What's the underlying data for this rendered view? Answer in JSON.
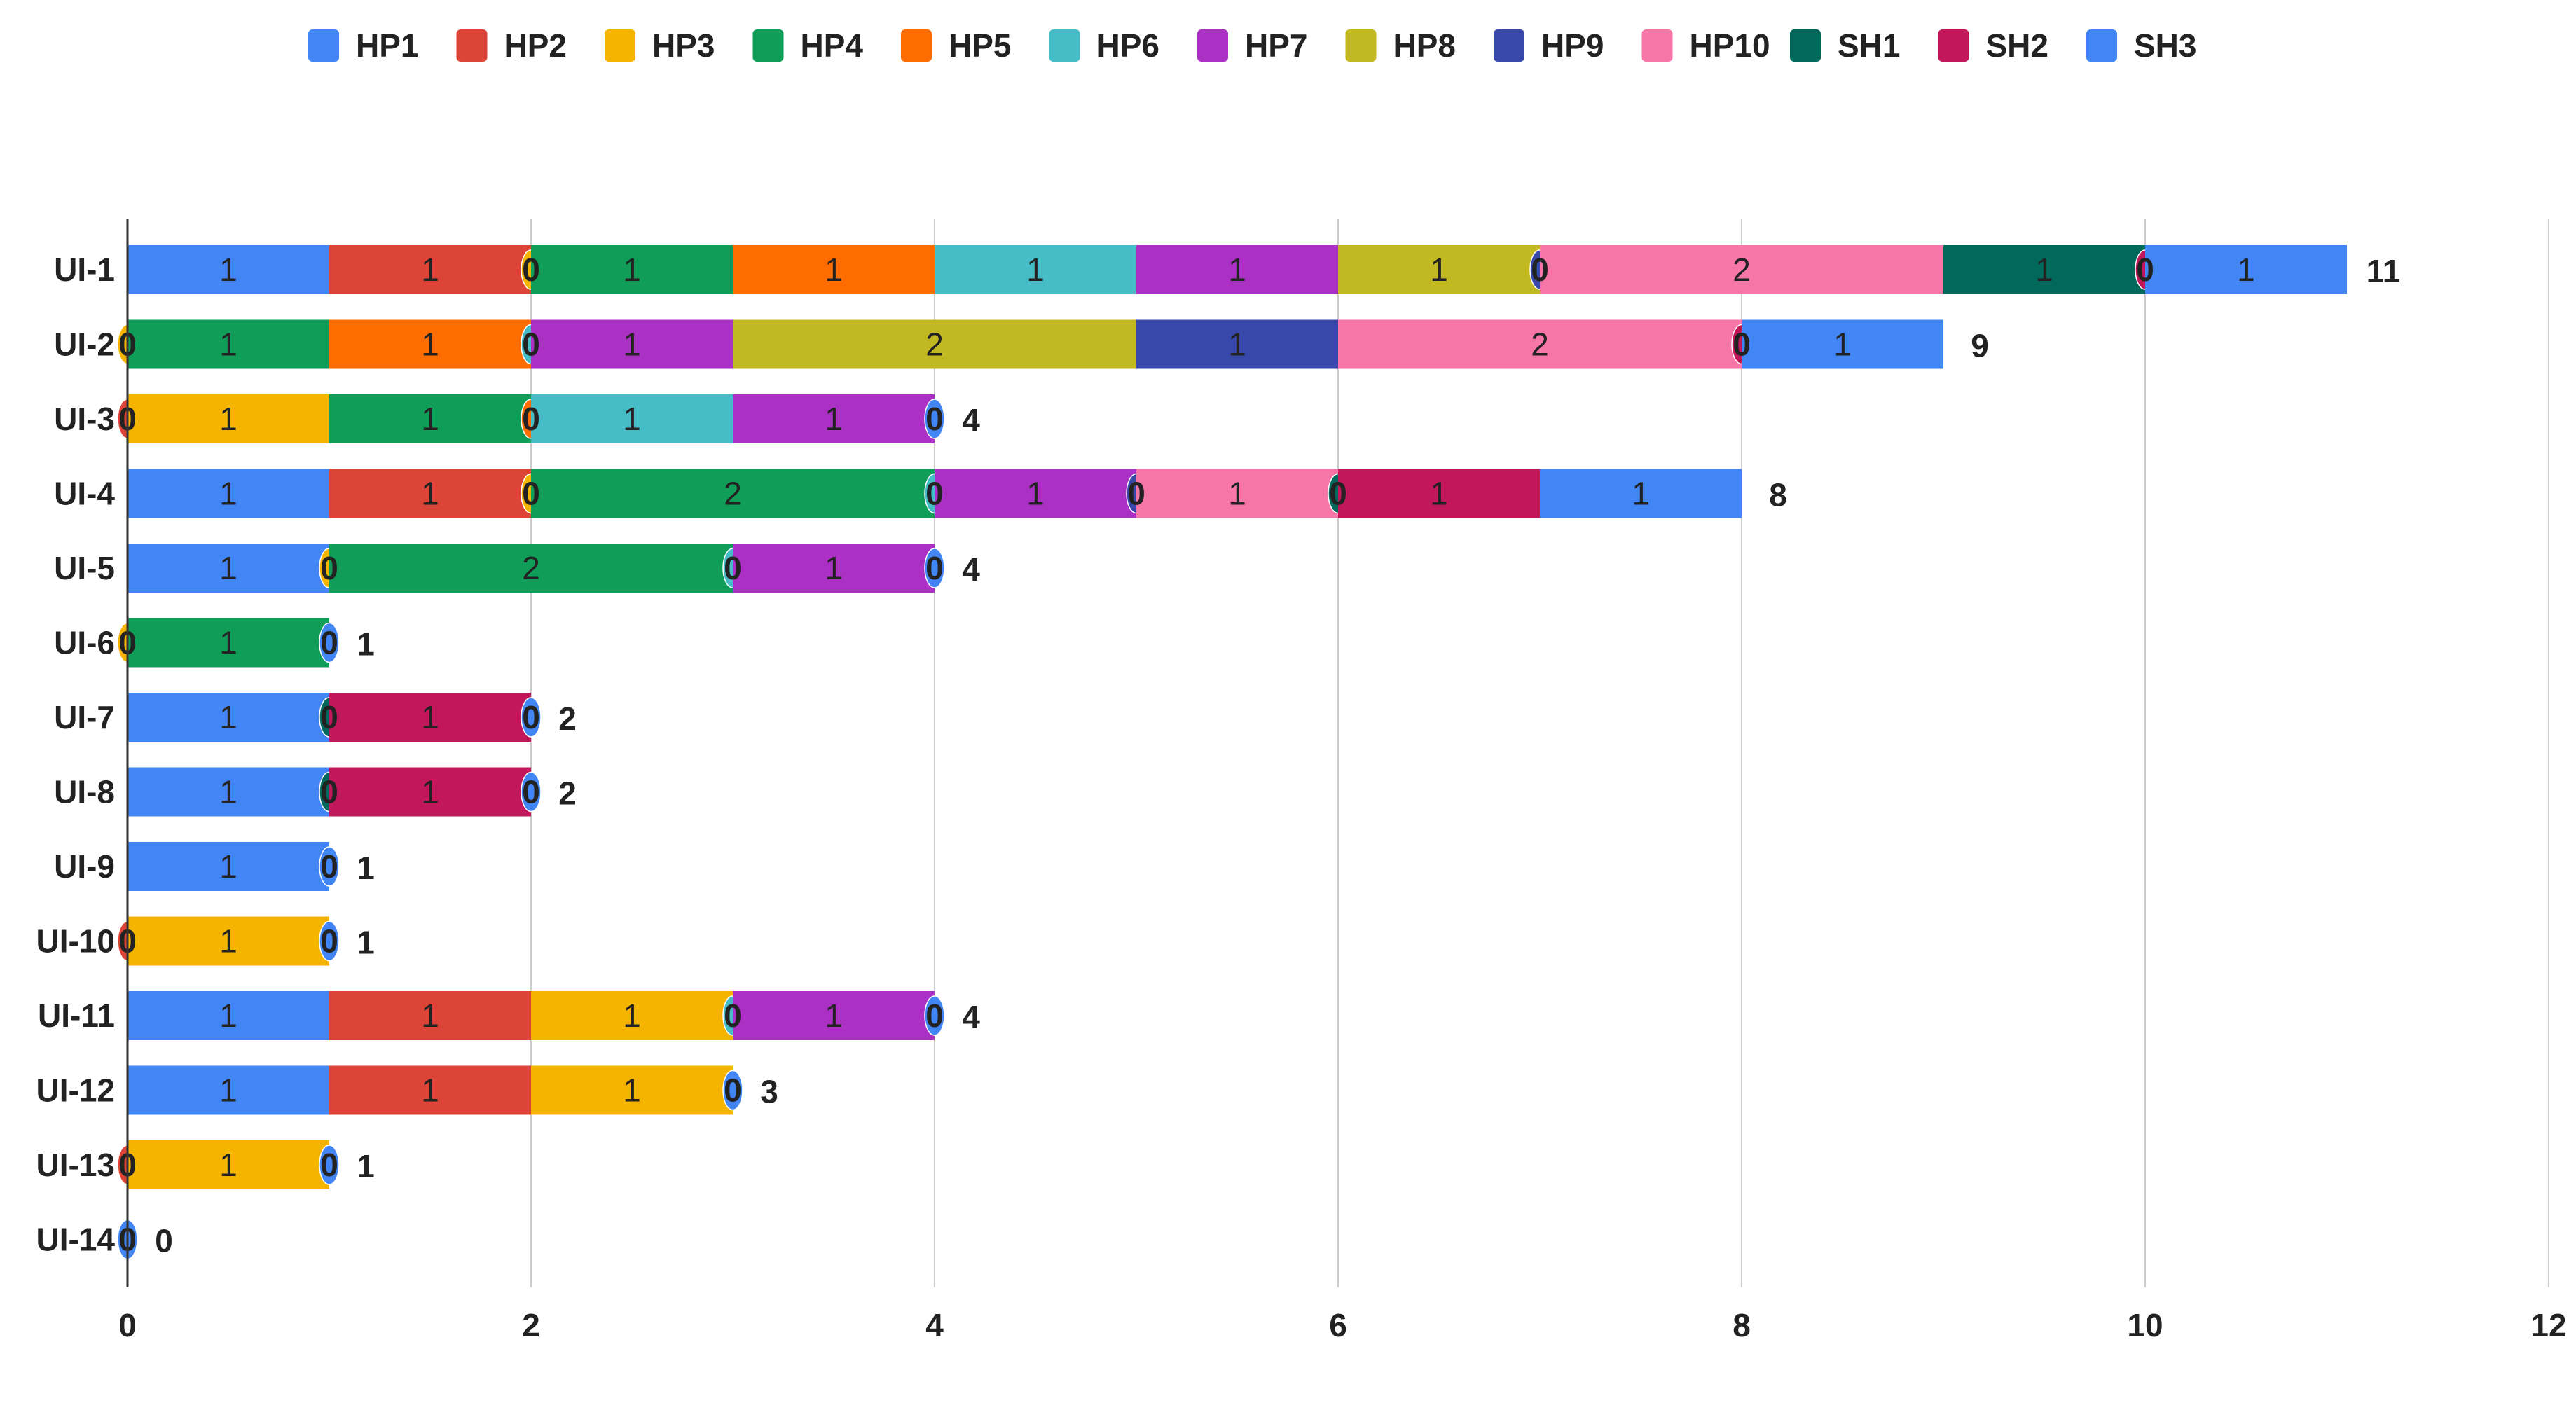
{
  "chart_data": {
    "type": "bar",
    "orientation": "horizontal",
    "stacked": true,
    "title": "",
    "xlabel": "",
    "ylabel": "",
    "xlim": [
      0,
      12
    ],
    "x_ticks": [
      0,
      2,
      4,
      6,
      8,
      10,
      12
    ],
    "grid": true,
    "legend_position": "top",
    "categories": [
      "UI-1",
      "UI-2",
      "UI-3",
      "UI-4",
      "UI-5",
      "UI-6",
      "UI-7",
      "UI-8",
      "UI-9",
      "UI-10",
      "UI-11",
      "UI-12",
      "UI-13",
      "UI-14"
    ],
    "totals": [
      11,
      9,
      4,
      8,
      4,
      1,
      2,
      2,
      1,
      1,
      4,
      3,
      1,
      0
    ],
    "series": [
      {
        "name": "HP1",
        "color": "#4285F4",
        "values": [
          1,
          null,
          null,
          1,
          1,
          null,
          1,
          1,
          1,
          null,
          1,
          1,
          null,
          null
        ]
      },
      {
        "name": "HP2",
        "color": "#DB4437",
        "values": [
          1,
          null,
          0,
          1,
          null,
          null,
          null,
          null,
          null,
          0,
          1,
          1,
          0,
          null
        ]
      },
      {
        "name": "HP3",
        "color": "#F4B400",
        "values": [
          0,
          0,
          1,
          0,
          0,
          0,
          null,
          null,
          null,
          1,
          1,
          1,
          1,
          null
        ]
      },
      {
        "name": "HP4",
        "color": "#0F9D58",
        "values": [
          1,
          1,
          1,
          2,
          2,
          1,
          null,
          null,
          null,
          null,
          null,
          null,
          null,
          null
        ]
      },
      {
        "name": "HP5",
        "color": "#FF6D01",
        "values": [
          1,
          1,
          0,
          null,
          null,
          null,
          null,
          null,
          null,
          null,
          null,
          null,
          null,
          null
        ]
      },
      {
        "name": "HP6",
        "color": "#46BDC6",
        "values": [
          1,
          0,
          1,
          0,
          0,
          null,
          null,
          null,
          null,
          null,
          0,
          null,
          null,
          null
        ]
      },
      {
        "name": "HP7",
        "color": "#AB30C4",
        "values": [
          1,
          1,
          1,
          1,
          1,
          null,
          null,
          null,
          null,
          null,
          1,
          null,
          null,
          null
        ]
      },
      {
        "name": "HP8",
        "color": "#C2B922",
        "values": [
          1,
          2,
          null,
          null,
          null,
          null,
          null,
          null,
          null,
          null,
          null,
          null,
          null,
          null
        ]
      },
      {
        "name": "HP9",
        "color": "#3949AB",
        "values": [
          0,
          1,
          null,
          0,
          null,
          null,
          null,
          null,
          null,
          null,
          null,
          null,
          null,
          null
        ]
      },
      {
        "name": "HP10",
        "color": "#F776A8",
        "values": [
          2,
          2,
          null,
          1,
          null,
          null,
          null,
          null,
          null,
          null,
          null,
          null,
          null,
          null
        ]
      },
      {
        "name": "SH1",
        "color": "#00695C",
        "values": [
          1,
          null,
          null,
          0,
          null,
          null,
          0,
          0,
          null,
          null,
          null,
          null,
          null,
          null
        ]
      },
      {
        "name": "SH2",
        "color": "#C2185B",
        "values": [
          0,
          0,
          null,
          1,
          null,
          null,
          1,
          1,
          null,
          null,
          null,
          null,
          null,
          null
        ]
      },
      {
        "name": "SH3",
        "color": "#4285F4",
        "values": [
          1,
          1,
          0,
          1,
          0,
          0,
          0,
          0,
          0,
          0,
          0,
          0,
          0,
          0
        ]
      }
    ]
  }
}
